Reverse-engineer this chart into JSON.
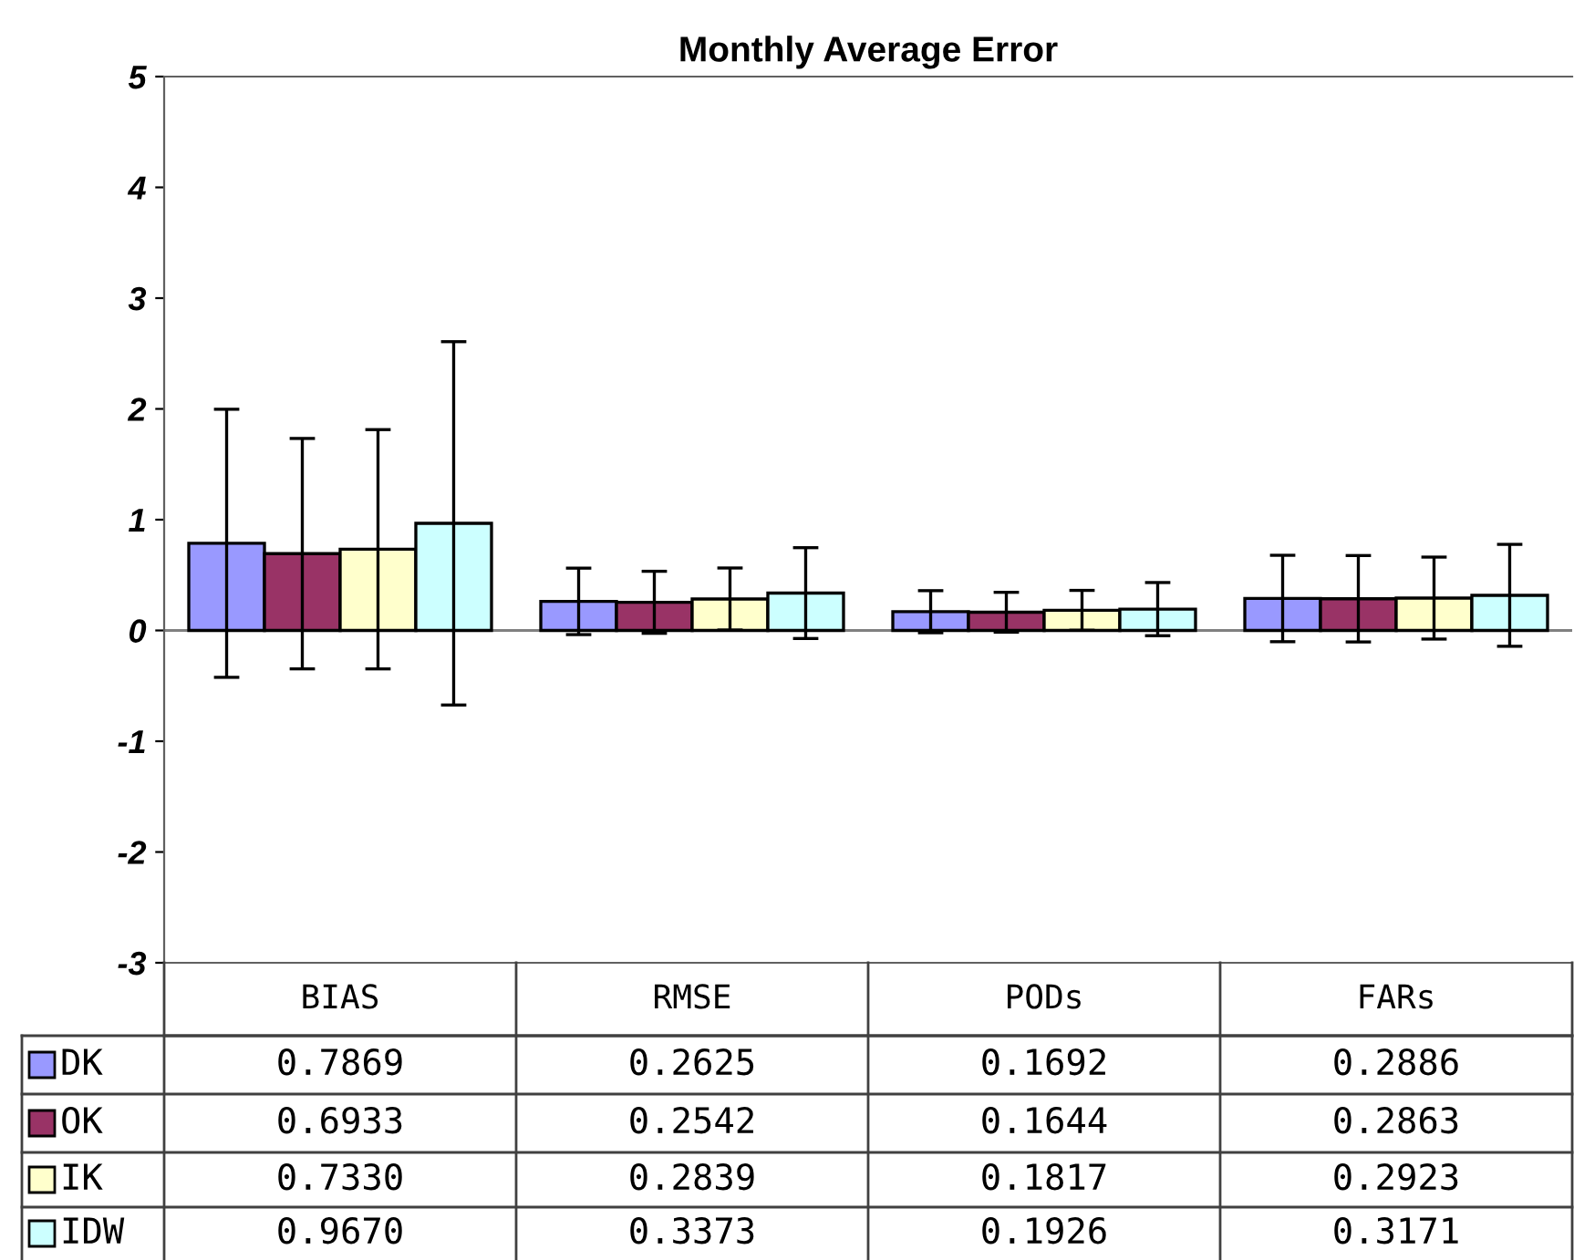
{
  "chart_data": {
    "type": "bar",
    "title": "Monthly Average Error",
    "categories": [
      "BIAS",
      "RMSE",
      "PODs",
      "FARs"
    ],
    "series": [
      {
        "name": "DK",
        "color": "#9999ff",
        "values": [
          0.7869,
          0.2625,
          0.1692,
          0.2886
        ],
        "errors": [
          1.21,
          0.3,
          0.19,
          0.39
        ],
        "value_labels": [
          "0.7869",
          "0.2625",
          "0.1692",
          "0.2886"
        ]
      },
      {
        "name": "OK",
        "color": "#993366",
        "values": [
          0.6933,
          0.2542,
          0.1644,
          0.2863
        ],
        "errors": [
          1.04,
          0.28,
          0.18,
          0.39
        ],
        "value_labels": [
          "0.6933",
          "0.2542",
          "0.1644",
          "0.2863"
        ]
      },
      {
        "name": "IK",
        "color": "#ffffcc",
        "values": [
          0.733,
          0.2839,
          0.1817,
          0.2923
        ],
        "errors": [
          1.08,
          0.28,
          0.18,
          0.37
        ],
        "value_labels": [
          "0.7330",
          "0.2839",
          "0.1817",
          "0.2923"
        ]
      },
      {
        "name": "IDW",
        "color": "#ccffff",
        "values": [
          0.967,
          0.3373,
          0.1926,
          0.3171
        ],
        "errors": [
          1.64,
          0.41,
          0.24,
          0.46
        ],
        "value_labels": [
          "0.9670",
          "0.3373",
          "0.1926",
          "0.3171"
        ]
      }
    ],
    "ylim": [
      -3,
      5
    ],
    "yticks": [
      -3,
      -2,
      -1,
      0,
      1,
      2,
      3,
      4,
      5
    ],
    "ref_lines": [
      {
        "axis": "y",
        "value": 0,
        "color": "#808080"
      }
    ],
    "legend": "bottom left"
  }
}
